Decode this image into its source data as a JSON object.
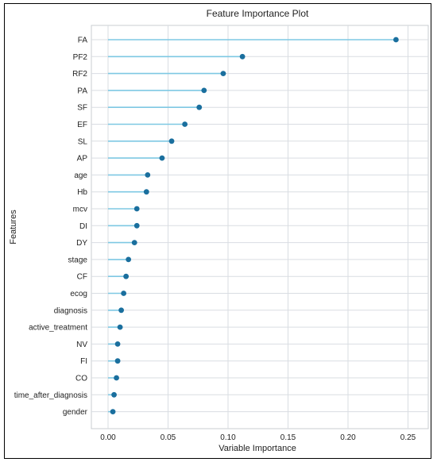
{
  "chart_data": {
    "type": "lollipop",
    "title": "Feature Importance Plot",
    "xlabel": "Variable Importance",
    "ylabel": "Features",
    "xlim": [
      -0.01,
      0.25
    ],
    "xticks": [
      "0.00",
      "0.05",
      "0.10",
      "0.15",
      "0.20",
      "0.25"
    ],
    "grid": true,
    "categories": [
      "FA",
      "PF2",
      "RF2",
      "PA",
      "SF",
      "EF",
      "SL",
      "AP",
      "age",
      "Hb",
      "mcv",
      "DI",
      "DY",
      "stage",
      "CF",
      "ecog",
      "diagnosis",
      "active_treatment",
      "NV",
      "FI",
      "CO",
      "time_after_diagnosis",
      "gender"
    ],
    "values": [
      0.24,
      0.112,
      0.096,
      0.08,
      0.076,
      0.064,
      0.053,
      0.045,
      0.033,
      0.032,
      0.024,
      0.024,
      0.022,
      0.017,
      0.015,
      0.013,
      0.011,
      0.01,
      0.008,
      0.008,
      0.007,
      0.005,
      0.004
    ],
    "colors": {
      "line": "#7ec8e3",
      "dot": "#1a6f9e",
      "grid": "#d9dde2",
      "frame": "#c8ccd1"
    }
  }
}
